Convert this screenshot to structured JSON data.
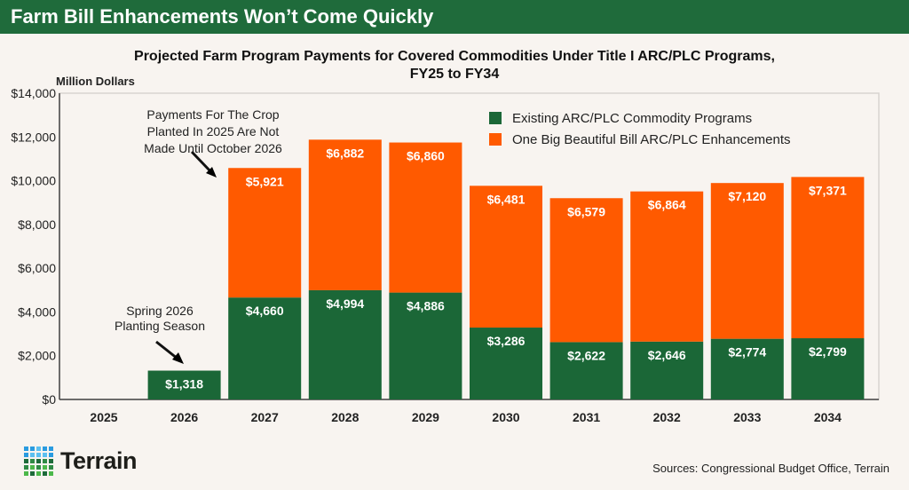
{
  "header": {
    "title": "Farm Bill Enhancements Won’t Come Quickly"
  },
  "chart_data": {
    "type": "bar",
    "stacked": true,
    "title": "Projected Farm Program Payments for Covered Commodities Under Title I ARC/PLC Programs, FY25 to FY34",
    "ylabel": "Million Dollars",
    "xlabel": "",
    "ylim": [
      0,
      14000
    ],
    "yticks": [
      "$0",
      "$2,000",
      "$4,000",
      "$6,000",
      "$8,000",
      "$10,000",
      "$12,000",
      "$14,000"
    ],
    "categories": [
      "2025",
      "2026",
      "2027",
      "2028",
      "2029",
      "2030",
      "2031",
      "2032",
      "2033",
      "2034"
    ],
    "series": [
      {
        "name": "Existing ARC/PLC Commodity Programs",
        "color": "#1b6737",
        "values": [
          0,
          1318,
          4660,
          4994,
          4886,
          3286,
          2622,
          2646,
          2774,
          2799
        ],
        "labels": [
          "",
          "$1,318",
          "$4,660",
          "$4,994",
          "$4,886",
          "$3,286",
          "$2,622",
          "$2,646",
          "$2,774",
          "$2,799"
        ]
      },
      {
        "name": "One Big Beautiful Bill ARC/PLC Enhancements",
        "color": "#ff5a00",
        "values": [
          0,
          0,
          5921,
          6882,
          6860,
          6481,
          6579,
          6864,
          7120,
          7371
        ],
        "labels": [
          "",
          "",
          "$5,921",
          "$6,882",
          "$6,860",
          "$6,481",
          "$6,579",
          "$6,864",
          "$7,120",
          "$7,371"
        ]
      }
    ],
    "legend_position": "top-right",
    "annotations": [
      {
        "text": [
          "Payments For The Crop",
          "Planted In 2025 Are Not",
          "Made Until October 2026"
        ],
        "target": "2027"
      },
      {
        "text": [
          "Spring 2026",
          "Planting Season"
        ],
        "target": "2026"
      }
    ]
  },
  "footer": {
    "brand": "Terrain",
    "sources": "Sources: Congressional Budget Office, Terrain"
  }
}
